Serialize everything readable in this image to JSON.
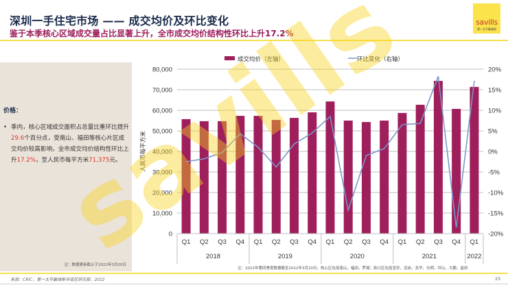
{
  "header": {
    "title": "深圳一手住宅市场 —— 成交均价及环比变化",
    "subtitle": "鉴于本季核心区域成交量占比显著上升，全市成交均价结构性环比上升17.2%"
  },
  "logo": {
    "brand": "savills",
    "tagline": "第一太平戴维斯",
    "color": "#fbe34c"
  },
  "sidebar": {
    "heading": "价格：",
    "bullet": "•",
    "paragraph_parts": [
      {
        "text": "季内，核心区域成交面积占总量比重环比提升",
        "highlight": false
      },
      {
        "text": "29.6",
        "highlight": true
      },
      {
        "text": "个百分点，受南山、福田等核心片区成交均价较高影响，全市成交均价结构性环比上升",
        "highlight": false
      },
      {
        "text": "17.2%",
        "highlight": true
      },
      {
        "text": "，至人民币每平方米",
        "highlight": false
      },
      {
        "text": "71,375",
        "highlight": true
      },
      {
        "text": "元。",
        "highlight": false
      }
    ],
    "note": "注：数据更新截止于2022年3月20日"
  },
  "chart_note": "注：2022年第四季度数据截至2022年3月20日，核心区包括南山，福田，罗湖；新兴区包括宝安，龙岗，龙华，光明，坪山，大鹏，盐田",
  "footer": {
    "source": "来源：CRIC，第一太平戴维斯华南区研究部，2022",
    "page_number": "25"
  },
  "chart_data": {
    "type": "bar",
    "title": "",
    "ylabel": "人民币每平方米",
    "y2label": "",
    "ylim": [
      0,
      80000
    ],
    "y_ticks": [
      "0",
      "10,000",
      "20,000",
      "30,000",
      "40,000",
      "50,000",
      "60,000",
      "70,000",
      "80,000"
    ],
    "y2lim": [
      -20,
      20
    ],
    "y2_ticks": [
      "-20%",
      "-15%",
      "-10%",
      "-5%",
      "0%",
      "5%",
      "10%",
      "15%",
      "20%"
    ],
    "grid": true,
    "legend_position": "top",
    "categories": [
      "Q1",
      "Q2",
      "Q3",
      "Q4",
      "Q1",
      "Q2",
      "Q3",
      "Q4",
      "Q1",
      "Q2",
      "Q3",
      "Q4",
      "Q1",
      "Q2",
      "Q3",
      "Q4",
      "Q1"
    ],
    "groups": [
      {
        "label": "2018",
        "count": 4
      },
      {
        "label": "2019",
        "count": 4
      },
      {
        "label": "2020",
        "count": 4
      },
      {
        "label": "2021",
        "count": 4
      },
      {
        "label": "2022",
        "count": 1
      }
    ],
    "series": [
      {
        "name": "成交均价（左轴）",
        "type": "bar",
        "axis": "left",
        "color": "#9e1f5c",
        "values": [
          55700,
          54700,
          54700,
          57300,
          57300,
          55300,
          56300,
          59000,
          64300,
          55000,
          54300,
          55000,
          58700,
          62700,
          74300,
          60700,
          71375
        ]
      },
      {
        "name": "环比变化（右轴）",
        "type": "line",
        "axis": "right",
        "color": "#7b96c9",
        "values": [
          -2.5,
          -1.8,
          -0.3,
          4.3,
          1.0,
          -3.8,
          1.8,
          4.5,
          8.5,
          -14.3,
          -1.0,
          0.7,
          6.5,
          6.8,
          18.3,
          -18.5,
          17.2
        ]
      }
    ]
  }
}
